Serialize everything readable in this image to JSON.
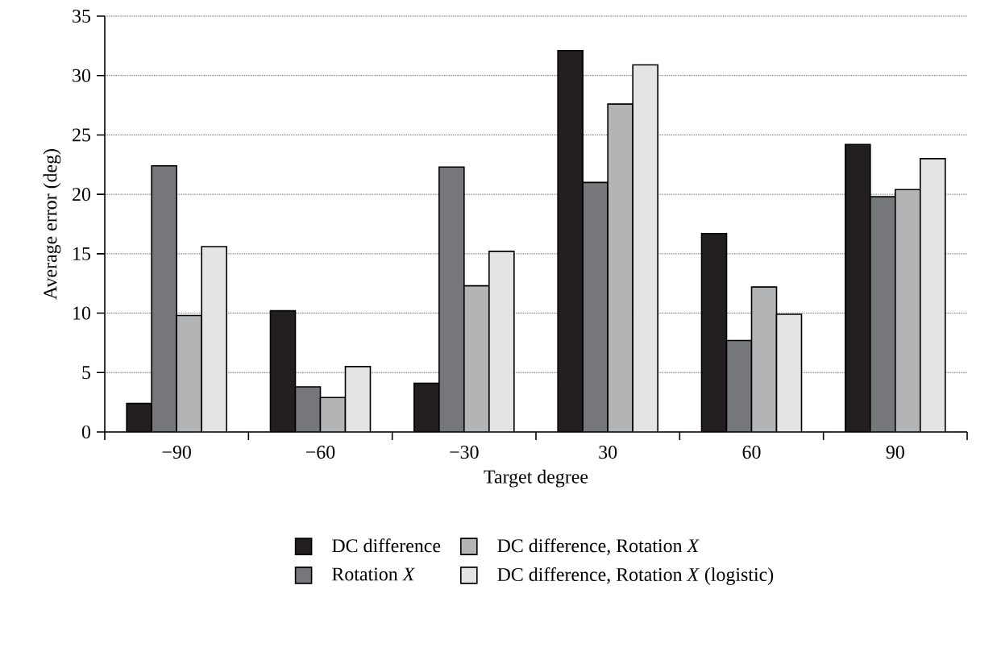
{
  "chart_data": {
    "type": "bar",
    "xlabel": "Target degree",
    "ylabel": "Average error (deg)",
    "categories": [
      "−90",
      "−60",
      "−30",
      "30",
      "60",
      "90"
    ],
    "series": [
      {
        "name": "DC difference",
        "color": "#231f20",
        "values": [
          2.4,
          10.2,
          4.1,
          32.1,
          16.7,
          24.2
        ]
      },
      {
        "name": "Rotation *X*",
        "color": "#76777a",
        "values": [
          22.4,
          3.8,
          22.3,
          21.0,
          7.7,
          19.8
        ]
      },
      {
        "name": "DC difference, Rotation *X*",
        "color": "#b3b4b6",
        "values": [
          9.8,
          2.9,
          12.3,
          27.6,
          12.2,
          20.4
        ]
      },
      {
        "name": "DC difference, Rotation *X* (logistic)",
        "color": "#e4e4e4",
        "values": [
          15.6,
          5.5,
          15.2,
          30.9,
          9.9,
          23.0
        ]
      }
    ],
    "ylim": [
      0,
      35
    ],
    "yticks": [
      0,
      5,
      10,
      15,
      20,
      25,
      30,
      35
    ],
    "grid": "y",
    "legend": "bottom"
  }
}
